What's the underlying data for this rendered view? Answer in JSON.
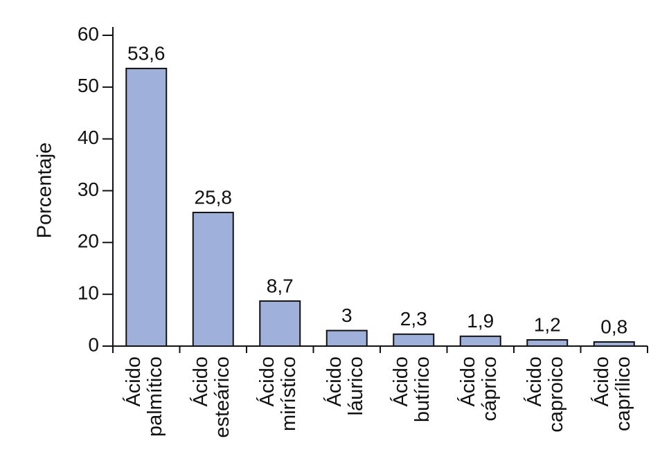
{
  "chart_data": {
    "type": "bar",
    "y_label": "Porcentaje",
    "categories": [
      "Ácido palmítico",
      "Ácido esteárico",
      "Ácido mirístico",
      "Ácido láurico",
      "Ácido butírico",
      "Ácido cáprico",
      "Ácido caproico",
      "Ácido caprílico"
    ],
    "values": [
      53.6,
      25.8,
      8.7,
      3,
      2.3,
      1.9,
      1.2,
      0.8
    ],
    "value_labels": [
      "53,6",
      "25,8",
      "8,7",
      "3",
      "2,3",
      "1,9",
      "1,2",
      "0,8"
    ],
    "color": "#9fb0da",
    "ylim": [
      0,
      60
    ],
    "yticks": [
      0,
      10,
      20,
      30,
      40,
      50,
      60
    ]
  }
}
